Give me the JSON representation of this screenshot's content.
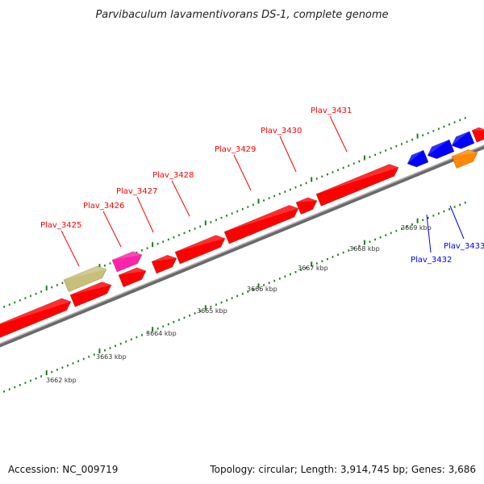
{
  "title": "Parvibaculum lavamentivorans DS-1, complete genome",
  "footer": {
    "accession": "Accession: NC_009719",
    "summary": "Topology: circular; Length: 3,914,745 bp; Genes: 3,686"
  },
  "colors": {
    "forward_gene": "#ff0000",
    "reverse_gene": "#0000ff",
    "tick": "#1a7f1a",
    "backbone": "#8a8a8a",
    "magenta_gene": "#ff22aa",
    "olive_gene": "#c8c07a",
    "orange_gene": "#ff8800"
  },
  "genes": [
    {
      "name": "Plav_3425",
      "strand": "+",
      "color": "#ff0000"
    },
    {
      "name": "Plav_3426",
      "strand": "+",
      "color": "#ff0000"
    },
    {
      "name": "Plav_3427",
      "strand": "+",
      "color": "#ff0000"
    },
    {
      "name": "Plav_3428",
      "strand": "+",
      "color": "#ff0000"
    },
    {
      "name": "Plav_3429",
      "strand": "+",
      "color": "#ff0000"
    },
    {
      "name": "Plav_3430",
      "strand": "+",
      "color": "#ff0000"
    },
    {
      "name": "Plav_3431",
      "strand": "+",
      "color": "#ff0000"
    },
    {
      "name": "Plav_3432",
      "strand": "-",
      "color": "#0000ff"
    },
    {
      "name": "Plav_3433",
      "strand": "-",
      "color": "#0000ff"
    }
  ],
  "scale_ticks": [
    "3662 kbp",
    "3663 kbp",
    "3664 kbp",
    "3665 kbp",
    "3666 kbp",
    "3667 kbp",
    "3668 kbp",
    "3669 kbp"
  ]
}
